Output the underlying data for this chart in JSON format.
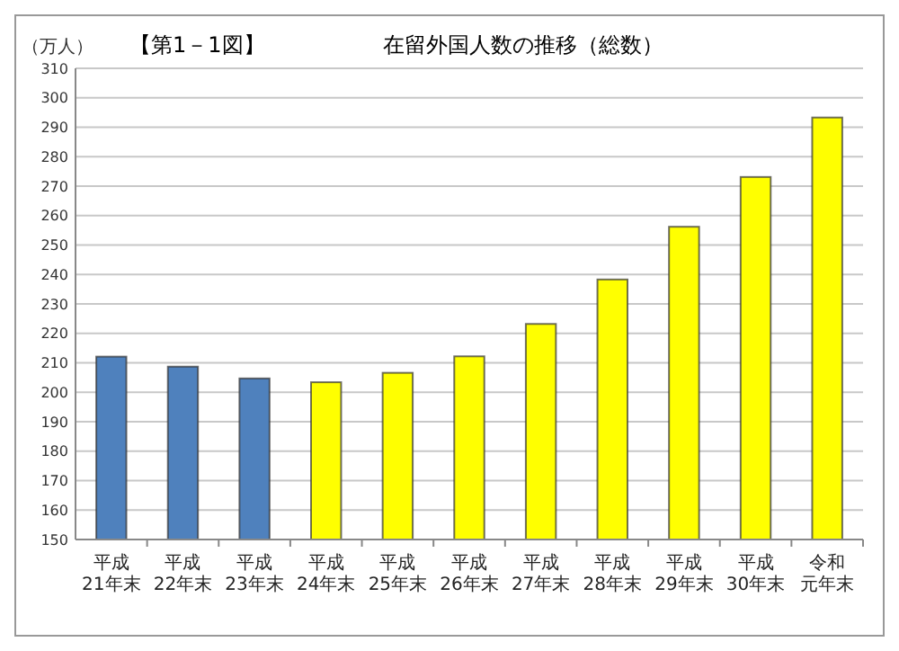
{
  "chart_data": {
    "type": "bar",
    "title": "在留外国人数の推移（総数）",
    "subtitle": "【第1－1図】",
    "ylabel": "（万人）",
    "categories": [
      "平成21年末",
      "平成22年末",
      "平成23年末",
      "平成24年末",
      "平成25年末",
      "平成26年末",
      "平成27年末",
      "平成28年末",
      "平成29年末",
      "平成30年末",
      "令和元年末"
    ],
    "values": [
      212.1,
      208.7,
      204.7,
      203.4,
      206.6,
      212.2,
      223.2,
      238.3,
      256.2,
      273.1,
      293.3
    ],
    "colors": [
      "#4f81bd",
      "#4f81bd",
      "#4f81bd",
      "#ffff00",
      "#ffff00",
      "#ffff00",
      "#ffff00",
      "#ffff00",
      "#ffff00",
      "#ffff00",
      "#ffff00"
    ],
    "ylim": [
      150,
      310
    ],
    "yticks": [
      150,
      160,
      170,
      180,
      190,
      200,
      210,
      220,
      230,
      240,
      250,
      260,
      270,
      280,
      290,
      300,
      310
    ],
    "grid": "y"
  }
}
